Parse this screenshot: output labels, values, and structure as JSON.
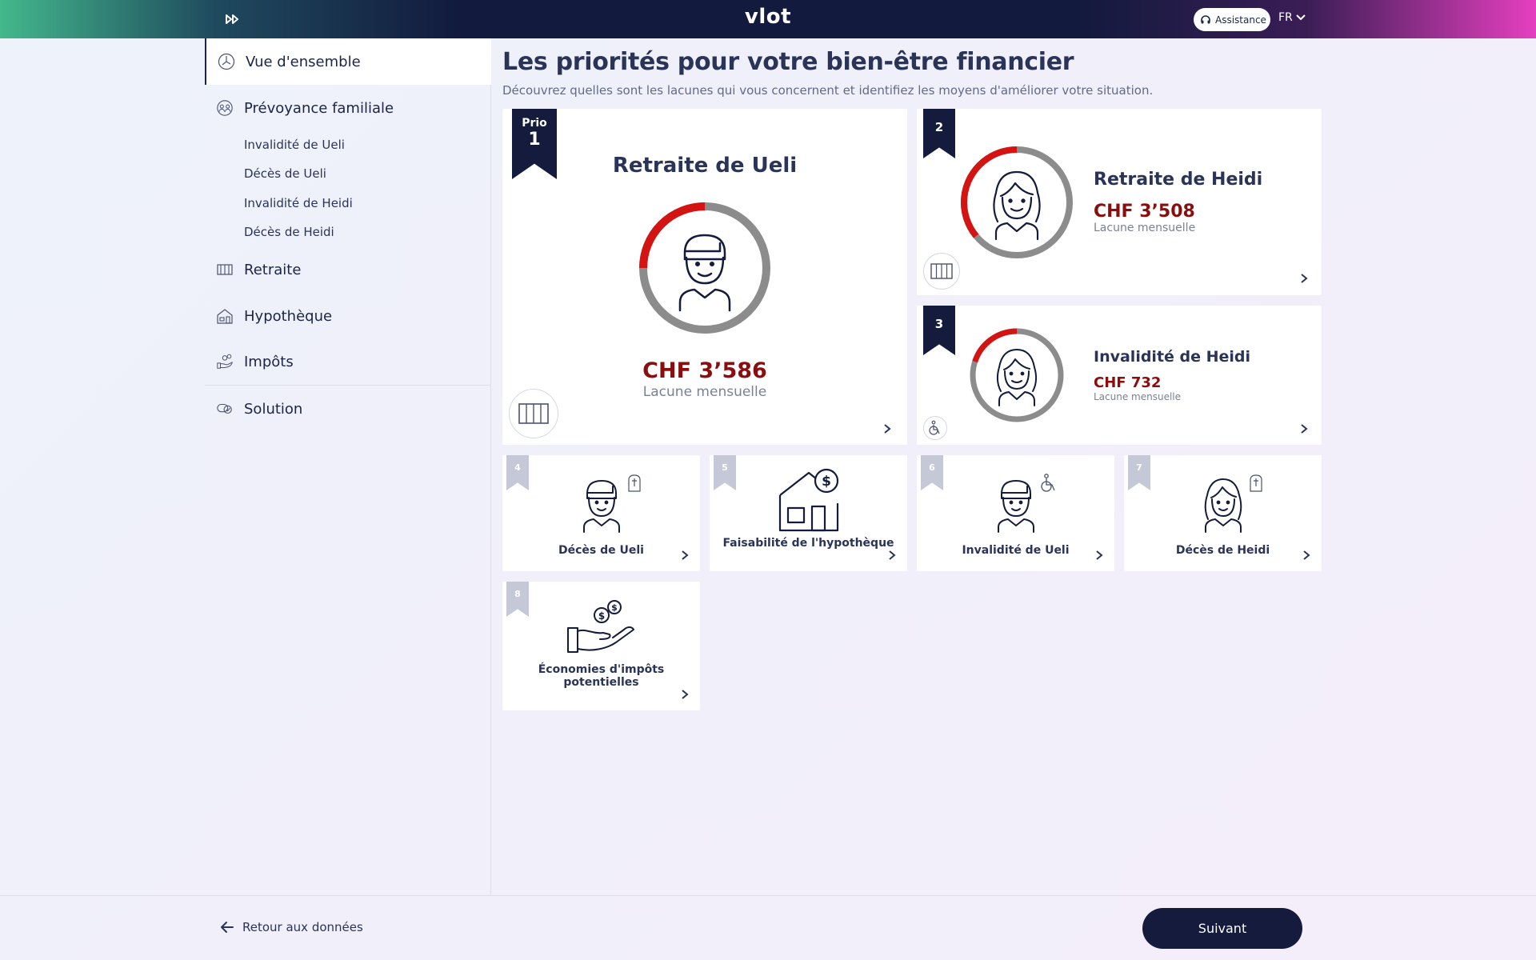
{
  "header": {
    "logo": "vlot",
    "assistance_label": "Assistance",
    "language": "FR"
  },
  "sidebar": {
    "items": [
      {
        "label": "Vue d'ensemble",
        "icon": "overview-icon",
        "active": true
      },
      {
        "label": "Prévoyance familiale",
        "icon": "family-icon"
      },
      {
        "label": "Retraite",
        "icon": "retirement-icon"
      },
      {
        "label": "Hypothèque",
        "icon": "house-icon"
      },
      {
        "label": "Impôts",
        "icon": "tax-hand-icon"
      },
      {
        "label": "Solution",
        "icon": "solution-icon"
      }
    ],
    "sub_items": [
      "Invalidité de Ueli",
      "Décès de Ueli",
      "Invalidité de Heidi",
      "Décès de Heidi"
    ]
  },
  "main": {
    "title": "Les priorités pour votre bien-être financier",
    "subtitle": "Découvrez quelles sont les lacunes qui vous concernent et identifiez les moyens d'améliorer votre situation.",
    "prio_label": "Prio",
    "big_cards": [
      {
        "rank": "1",
        "title": "Retraite de Ueli",
        "amount": "CHF 3’586",
        "amount_sub": "Lacune mensuelle",
        "gap_fraction": 0.25
      },
      {
        "rank": "2",
        "title": "Retraite de Heidi",
        "amount": "CHF 3’508",
        "amount_sub": "Lacune mensuelle",
        "gap_fraction": 0.36
      },
      {
        "rank": "3",
        "title": "Invalidité de Heidi",
        "amount": "CHF 732",
        "amount_sub": "Lacune mensuelle",
        "gap_fraction": 0.2
      }
    ],
    "tiles": [
      {
        "rank": "4",
        "label": "Décès de Ueli"
      },
      {
        "rank": "5",
        "label": "Faisabilité de l'hypothèque"
      },
      {
        "rank": "6",
        "label": "Invalidité de Ueli"
      },
      {
        "rank": "7",
        "label": "Décès de Heidi"
      },
      {
        "rank": "8",
        "label": "Économies d'impôts potentielles"
      }
    ]
  },
  "footer": {
    "back_label": "Retour aux données",
    "next_label": "Suivant"
  },
  "colors": {
    "navy": "#141b3c",
    "gap_red": "#d41313",
    "ring_grey": "#8c8c8c",
    "amount_red": "#8b0e0e"
  }
}
